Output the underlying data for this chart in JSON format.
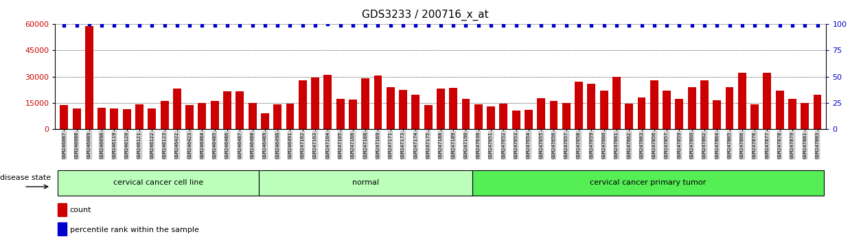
{
  "title": "GDS3233 / 200716_x_at",
  "samples": [
    "GSM246087",
    "GSM246088",
    "GSM246089",
    "GSM246090",
    "GSM246119",
    "GSM246120",
    "GSM246121",
    "GSM246122",
    "GSM246123",
    "GSM246422",
    "GSM246423",
    "GSM246484",
    "GSM246485",
    "GSM246486",
    "GSM246487",
    "GSM246488",
    "GSM246489",
    "GSM246490",
    "GSM246491",
    "GSM247162",
    "GSM247163",
    "GSM247164",
    "GSM247165",
    "GSM247166",
    "GSM247168",
    "GSM247169",
    "GSM247171",
    "GSM247173",
    "GSM247174",
    "GSM247175",
    "GSM247188",
    "GSM247189",
    "GSM247190",
    "GSM247630",
    "GSM247651",
    "GSM247652",
    "GSM247653",
    "GSM247654",
    "GSM247655",
    "GSM247656",
    "GSM247657",
    "GSM247658",
    "GSM247659",
    "GSM247660",
    "GSM247661",
    "GSM247662",
    "GSM247663",
    "GSM247856",
    "GSM247857",
    "GSM247859",
    "GSM247860",
    "GSM247862",
    "GSM247864",
    "GSM247865",
    "GSM247866",
    "GSM247876",
    "GSM247877",
    "GSM247878",
    "GSM247879",
    "GSM247881",
    "GSM247883"
  ],
  "counts": [
    13500,
    11500,
    59000,
    12000,
    11800,
    11200,
    14200,
    11800,
    16000,
    23000,
    13500,
    15000,
    16000,
    21500,
    21500,
    14800,
    8800,
    14000,
    14500,
    28000,
    29500,
    31000,
    17000,
    16800,
    29000,
    30500,
    24000,
    22500,
    19500,
    13800,
    23000,
    23500,
    17200,
    14000,
    12800,
    14500,
    10500,
    11000,
    17500,
    16000,
    15000,
    27000,
    26000,
    22000,
    30000,
    14500,
    18000,
    28000,
    22000,
    17000,
    24000,
    28000,
    16500,
    24000,
    32000,
    14000,
    32000,
    22000,
    17000,
    15000,
    19500
  ],
  "percentile_ranks": [
    99,
    99,
    100,
    99,
    99,
    99,
    99,
    99,
    99,
    99,
    99,
    99,
    99,
    99,
    99,
    99,
    99,
    99,
    99,
    99,
    99,
    100,
    99,
    99,
    99,
    99,
    99,
    99,
    99,
    99,
    99,
    99,
    99,
    99,
    99,
    99,
    99,
    99,
    99,
    99,
    99,
    99,
    99,
    99,
    99,
    99,
    99,
    99,
    99,
    99,
    99,
    99,
    99,
    99,
    99,
    99,
    99,
    99,
    99,
    99,
    99
  ],
  "bar_color": "#cc0000",
  "dot_color": "#0000cc",
  "ylim_left": [
    0,
    60000
  ],
  "ylim_right": [
    0,
    100
  ],
  "yticks_left": [
    0,
    15000,
    30000,
    45000,
    60000
  ],
  "yticks_right": [
    0,
    25,
    50,
    75,
    100
  ],
  "group_boundaries": [
    0,
    16,
    33,
    61
  ],
  "group_labels": [
    "cervical cancer cell line",
    "normal",
    "cervical cancer primary tumor"
  ],
  "group_colors": [
    "#bbffbb",
    "#bbffbb",
    "#55ee55"
  ],
  "disease_state_label": "disease state",
  "legend_count_label": "count",
  "legend_pct_label": "percentile rank within the sample"
}
